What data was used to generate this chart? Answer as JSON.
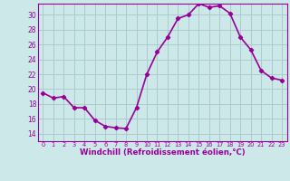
{
  "x": [
    0,
    1,
    2,
    3,
    4,
    5,
    6,
    7,
    8,
    9,
    10,
    11,
    12,
    13,
    14,
    15,
    16,
    17,
    18,
    19,
    20,
    21,
    22,
    23
  ],
  "y": [
    19.5,
    18.8,
    19.0,
    17.5,
    17.5,
    15.8,
    15.0,
    14.8,
    14.7,
    17.5,
    22.0,
    25.0,
    27.0,
    29.5,
    30.0,
    31.5,
    31.0,
    31.2,
    30.2,
    27.0,
    25.3,
    22.5,
    21.5,
    21.2
  ],
  "xlabel": "Windchill (Refroidissement éolien,°C)",
  "xlim": [
    -0.5,
    23.5
  ],
  "ylim": [
    13.0,
    31.5
  ],
  "yticks": [
    14,
    16,
    18,
    20,
    22,
    24,
    26,
    28,
    30
  ],
  "xticks": [
    0,
    1,
    2,
    3,
    4,
    5,
    6,
    7,
    8,
    9,
    10,
    11,
    12,
    13,
    14,
    15,
    16,
    17,
    18,
    19,
    20,
    21,
    22,
    23
  ],
  "line_color": "#990099",
  "marker": "D",
  "markersize": 2.2,
  "bg_color": "#cce8e8",
  "grid_color": "#aacccc",
  "tick_color": "#990099",
  "label_color": "#990099",
  "linewidth": 1.2
}
